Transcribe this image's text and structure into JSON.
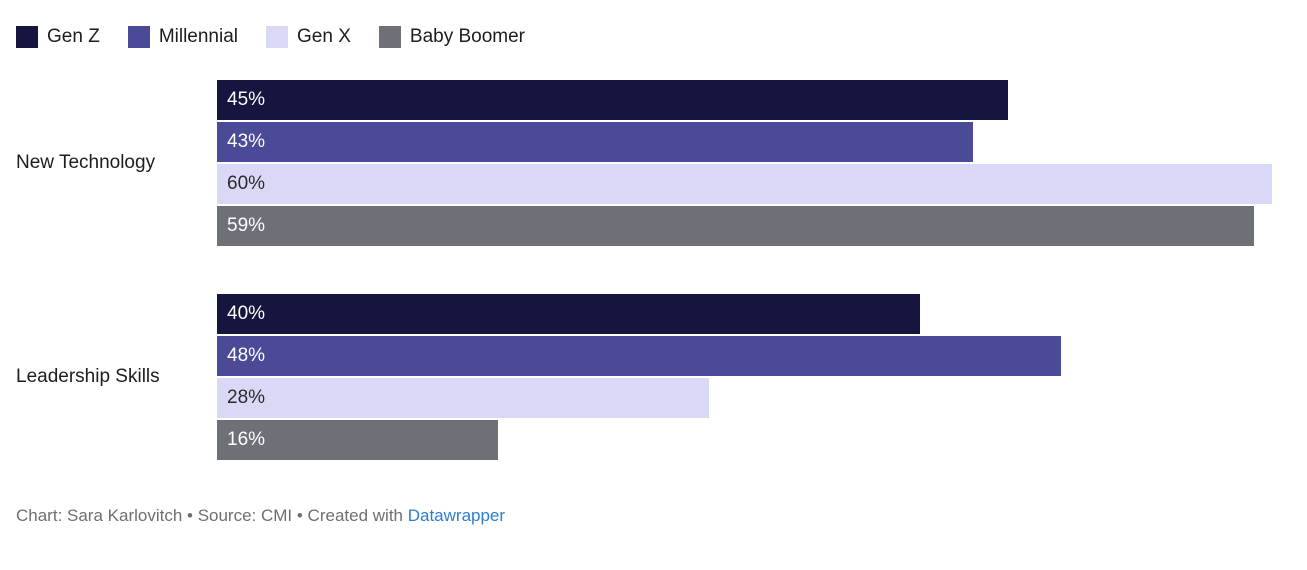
{
  "chart_data": {
    "type": "bar",
    "orientation": "horizontal",
    "title": "",
    "categories": [
      "New Technology",
      "Leadership Skills"
    ],
    "series": [
      {
        "name": "Gen Z",
        "color": "#15153f",
        "label_color": "#ffffff",
        "values": [
          45,
          40
        ]
      },
      {
        "name": "Millennial",
        "color": "#4a4a97",
        "label_color": "#ffffff",
        "values": [
          43,
          48
        ]
      },
      {
        "name": "Gen X",
        "color": "#d9d9f7",
        "label_color": "#2b2b2b",
        "values": [
          60,
          28
        ]
      },
      {
        "name": "Baby Boomer",
        "color": "#6e7077",
        "label_color": "#ffffff",
        "values": [
          59,
          16
        ]
      }
    ],
    "value_suffix": "%",
    "xlim": [
      0,
      62
    ],
    "grid": false,
    "legend_position": "top"
  },
  "footer": {
    "prefix": "Chart: Sara Karlovitch • Source: CMI • Created with ",
    "link_label": "Datawrapper",
    "link_color": "#2d7dd2"
  }
}
